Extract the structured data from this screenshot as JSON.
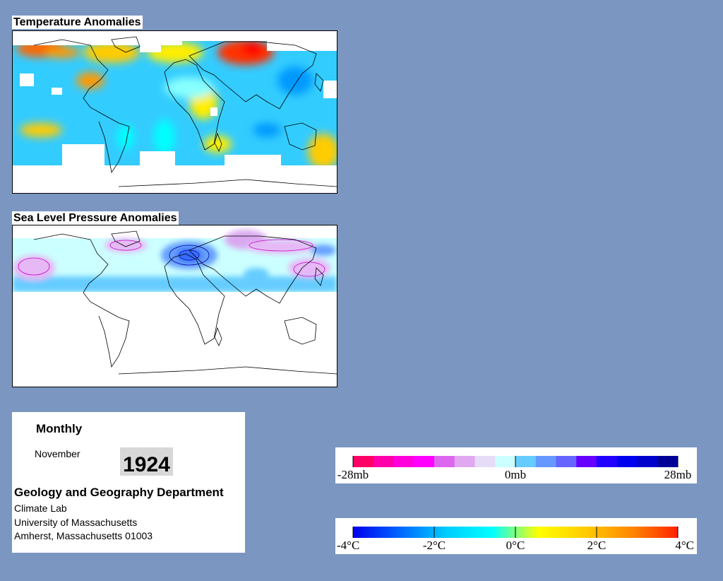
{
  "panels": {
    "temperature": {
      "title": "Temperature Anomalies"
    },
    "pressure": {
      "title": "Sea Level Pressure Anomalies"
    }
  },
  "info": {
    "period": "Monthly",
    "month": "November",
    "year": "1924",
    "department": "Geology and Geography Department",
    "lab": "Climate Lab",
    "university": "University of Massachusetts",
    "address": "Amherst, Massachusetts 01003"
  },
  "pressure_legend": {
    "colors": [
      "#ff0066",
      "#ff00aa",
      "#ff00dd",
      "#ff00ff",
      "#dd66ee",
      "#e0a8f0",
      "#e6dcf8",
      "#ccffff",
      "#66ccff",
      "#6699ff",
      "#6666ff",
      "#6600ff",
      "#2200ff",
      "#0000ee",
      "#0000cc",
      "#000099"
    ],
    "ticks": [
      {
        "label": "-28mb",
        "value": -28
      },
      {
        "label": "0mb",
        "value": 0
      },
      {
        "label": "28mb",
        "value": 28
      }
    ]
  },
  "temperature_legend": {
    "gradient": [
      "#0000ee",
      "#0066ff",
      "#00ccff",
      "#00ffff",
      "#ffff00",
      "#ffcc00",
      "#ff8800",
      "#ff2200"
    ],
    "ticks": [
      {
        "label": "-4°C",
        "value": -4
      },
      {
        "label": "-2°C",
        "value": -2
      },
      {
        "label": "0°C",
        "value": 0
      },
      {
        "label": "2°C",
        "value": 2
      },
      {
        "label": "4°C",
        "value": 4
      }
    ]
  },
  "colors": {
    "background": "#7b97c1",
    "coastline": "#000000"
  }
}
